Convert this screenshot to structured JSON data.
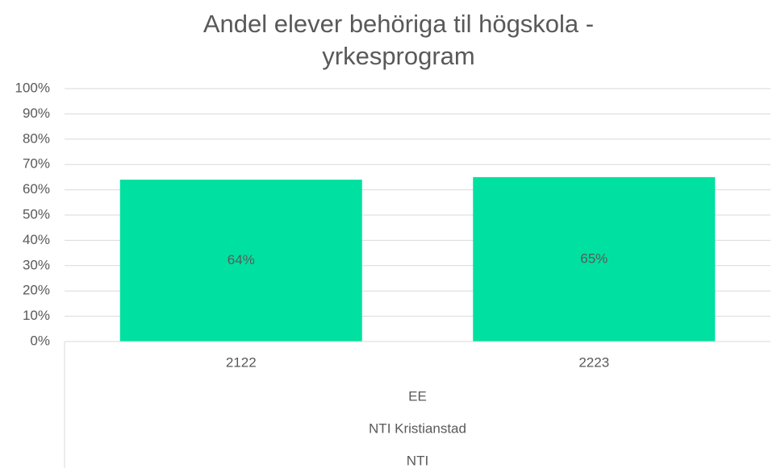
{
  "chart_data": {
    "type": "bar",
    "title": "Andel elever behöriga til högskola - yrkesprogram",
    "categories": [
      "2122",
      "2223"
    ],
    "category_groups": [
      "EE",
      "NTI Kristianstad",
      "NTI"
    ],
    "values": [
      64,
      65
    ],
    "value_labels": [
      "64%",
      "65%"
    ],
    "color": "#00e0a0",
    "ylim": [
      0,
      100
    ],
    "yticks": [
      {
        "value": 0,
        "label": "0%"
      },
      {
        "value": 10,
        "label": "10%"
      },
      {
        "value": 20,
        "label": "20%"
      },
      {
        "value": 30,
        "label": "30%"
      },
      {
        "value": 40,
        "label": "40%"
      },
      {
        "value": 50,
        "label": "50%"
      },
      {
        "value": 60,
        "label": "60%"
      },
      {
        "value": 70,
        "label": "70%"
      },
      {
        "value": 80,
        "label": "80%"
      },
      {
        "value": 90,
        "label": "90%"
      },
      {
        "value": 100,
        "label": "100%"
      }
    ],
    "grid": true
  }
}
